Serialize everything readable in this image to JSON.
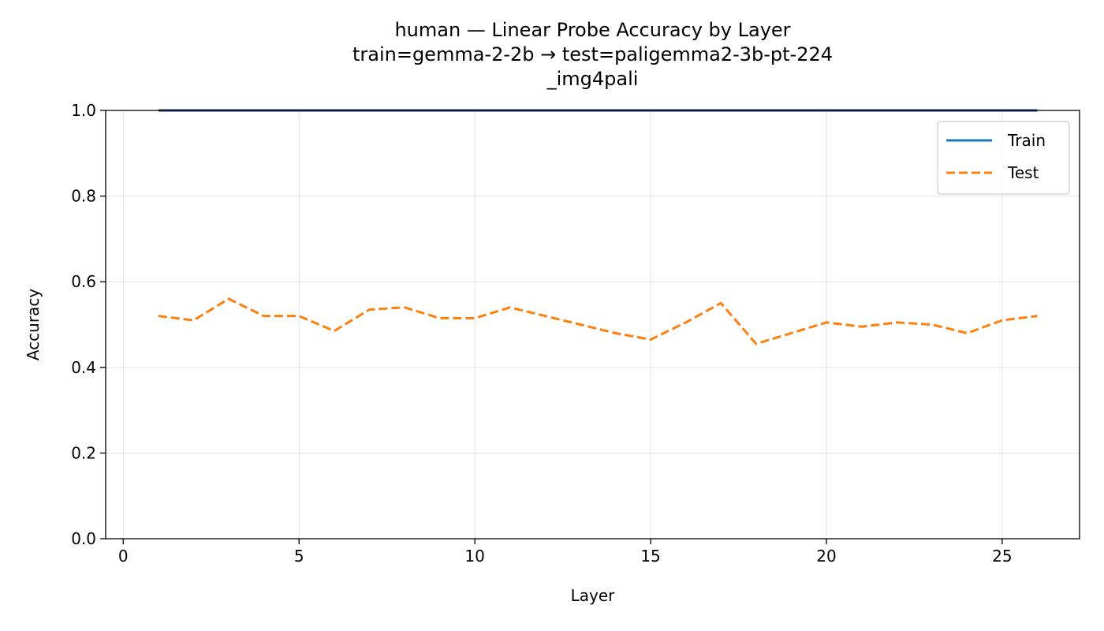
{
  "chart_data": {
    "type": "line",
    "title": [
      "human — Linear Probe Accuracy by Layer",
      "train=gemma-2-2b → test=paligemma2-3b-pt-224",
      "_img4pali"
    ],
    "xlabel": "Layer",
    "ylabel": "Accuracy",
    "xlim": [
      -0.5,
      27.2
    ],
    "ylim": [
      0.0,
      1.0
    ],
    "xticks": [
      0,
      5,
      10,
      15,
      20,
      25
    ],
    "xtick_labels": [
      "0",
      "5",
      "10",
      "15",
      "20",
      "25"
    ],
    "yticks": [
      0.0,
      0.2,
      0.4,
      0.6,
      0.8,
      1.0
    ],
    "ytick_labels": [
      "0.0",
      "0.2",
      "0.4",
      "0.6",
      "0.8",
      "1.0"
    ],
    "grid": true,
    "legend_position": "upper right",
    "x": [
      1,
      2,
      3,
      4,
      5,
      6,
      7,
      8,
      9,
      10,
      11,
      12,
      13,
      14,
      15,
      16,
      17,
      18,
      19,
      20,
      21,
      22,
      23,
      24,
      25,
      26
    ],
    "series": [
      {
        "name": "Train",
        "color": "#1f77b4",
        "style": "solid",
        "values": [
          1.0,
          1.0,
          1.0,
          1.0,
          1.0,
          1.0,
          1.0,
          1.0,
          1.0,
          1.0,
          1.0,
          1.0,
          1.0,
          1.0,
          1.0,
          1.0,
          1.0,
          1.0,
          1.0,
          1.0,
          1.0,
          1.0,
          1.0,
          1.0,
          1.0,
          1.0
        ]
      },
      {
        "name": "Test",
        "color": "#ff7f0e",
        "style": "dashed",
        "values": [
          0.52,
          0.51,
          0.56,
          0.52,
          0.52,
          0.485,
          0.535,
          0.54,
          0.515,
          0.515,
          0.54,
          0.52,
          0.5,
          0.48,
          0.465,
          0.505,
          0.55,
          0.455,
          0.48,
          0.505,
          0.495,
          0.505,
          0.5,
          0.48,
          0.51,
          0.52
        ]
      }
    ]
  }
}
